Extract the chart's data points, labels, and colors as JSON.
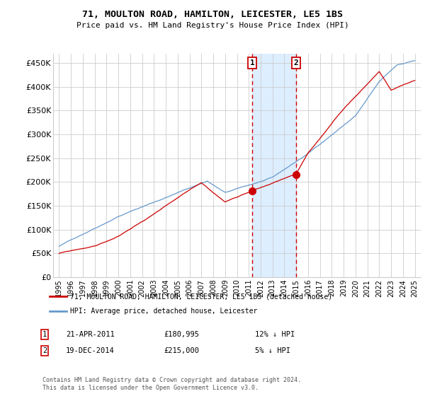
{
  "title": "71, MOULTON ROAD, HAMILTON, LEICESTER, LE5 1BS",
  "subtitle": "Price paid vs. HM Land Registry's House Price Index (HPI)",
  "legend_label_red": "71, MOULTON ROAD, HAMILTON, LEICESTER, LE5 1BS (detached house)",
  "legend_label_blue": "HPI: Average price, detached house, Leicester",
  "annotation1_date": "21-APR-2011",
  "annotation1_price": "£180,995",
  "annotation1_hpi": "12% ↓ HPI",
  "annotation2_date": "19-DEC-2014",
  "annotation2_price": "£215,000",
  "annotation2_hpi": "5% ↓ HPI",
  "footer": "Contains HM Land Registry data © Crown copyright and database right 2024.\nThis data is licensed under the Open Government Licence v3.0.",
  "vline1_x": 2011.3,
  "vline2_x": 2014.97,
  "sale1_val": 180995,
  "sale2_val": 215000,
  "ylim": [
    0,
    470000
  ],
  "xlim": [
    1994.5,
    2025.5
  ],
  "yticks": [
    0,
    50000,
    100000,
    150000,
    200000,
    250000,
    300000,
    350000,
    400000,
    450000
  ],
  "ytick_labels": [
    "£0",
    "£50K",
    "£100K",
    "£150K",
    "£200K",
    "£250K",
    "£300K",
    "£350K",
    "£400K",
    "£450K"
  ],
  "xticks": [
    1995,
    1996,
    1997,
    1998,
    1999,
    2000,
    2001,
    2002,
    2003,
    2004,
    2005,
    2006,
    2007,
    2008,
    2009,
    2010,
    2011,
    2012,
    2013,
    2014,
    2015,
    2016,
    2017,
    2018,
    2019,
    2020,
    2021,
    2022,
    2023,
    2024,
    2025
  ],
  "red_color": "#cc0000",
  "blue_color": "#6699cc",
  "shade_color": "#ddeeff",
  "grid_color": "#cccccc",
  "background_color": "#ffffff",
  "hpi_seed": 42,
  "red_seed": 99
}
